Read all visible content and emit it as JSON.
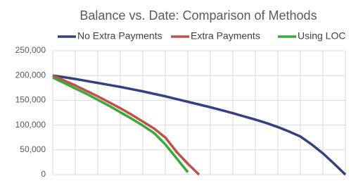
{
  "chart_data": {
    "type": "line",
    "title": "Balance vs. Date: Comparison of Methods",
    "categories": [
      null,
      null,
      null,
      null,
      null,
      null,
      null,
      null,
      null,
      null,
      null,
      null,
      null,
      null,
      null,
      null,
      null,
      null,
      null,
      null,
      null,
      null,
      null,
      null,
      null,
      null,
      null
    ],
    "series": [
      {
        "name": "No Extra Payments",
        "color": "#34407f",
        "values": [
          200000,
          196500,
          193000,
          189000,
          185000,
          181000,
          177000,
          172500,
          168000,
          163000,
          158000,
          152500,
          147000,
          141500,
          136000,
          130000,
          124000,
          117500,
          111000,
          104000,
          96000,
          87000,
          77000,
          61000,
          43000,
          22000,
          0
        ]
      },
      {
        "name": "Extra Payments",
        "color": "#c0504d",
        "values": [
          200000,
          190000,
          180000,
          169000,
          158000,
          146000,
          134000,
          121000,
          107000,
          93000,
          75000,
          46000,
          22000,
          0,
          null,
          null,
          null,
          null,
          null,
          null,
          null,
          null,
          null,
          null,
          null,
          null,
          null
        ]
      },
      {
        "name": "Using LOC",
        "color": "#3aaa35",
        "values": [
          196000,
          185000,
          174000,
          163000,
          151000,
          139000,
          126000,
          113000,
          99000,
          84000,
          61000,
          33000,
          5000,
          null,
          null,
          null,
          null,
          null,
          null,
          null,
          null,
          null,
          null,
          null,
          null,
          null,
          null
        ]
      }
    ],
    "ylim": [
      0,
      250000
    ],
    "yticks": [
      {
        "value": 0,
        "label": "0"
      },
      {
        "value": 50000,
        "label": "50,000"
      },
      {
        "value": 100000,
        "label": "100,000"
      },
      {
        "value": 150000,
        "label": "150,000"
      },
      {
        "value": 200000,
        "label": "200,000"
      },
      {
        "value": 250000,
        "label": "250,000"
      }
    ],
    "grid": true
  }
}
